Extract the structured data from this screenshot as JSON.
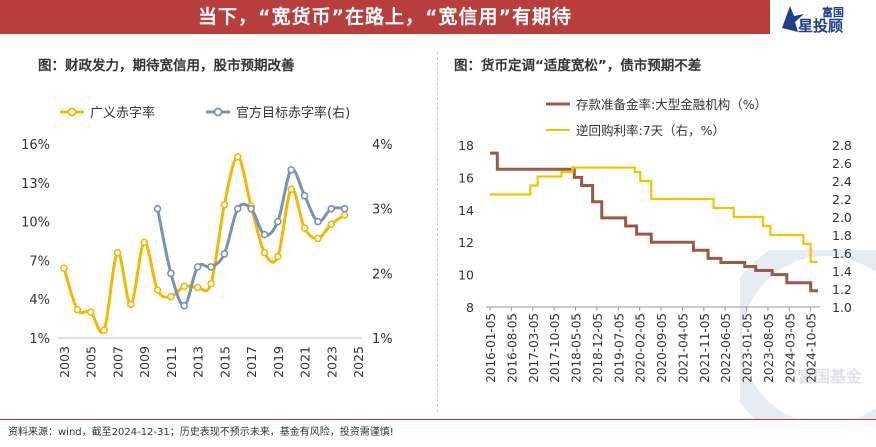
{
  "banner": {
    "title": "当下，“宽货币”在路上，“宽信用”有期待"
  },
  "logo": {
    "brand": "富国",
    "brand_sub": "星投顾",
    "watermark": "富国基金"
  },
  "left_panel": {
    "title": "图：财政发力，期待宽信用，股市预期改善"
  },
  "right_panel": {
    "title": "图：货币定调“适度宽松”，债市预期不差"
  },
  "footnote": "资料来源：wind，截至2024-12-31；历史表现不预示未来，基金有风险，投资需谨慎!",
  "colors": {
    "banner": "#b83d3d",
    "gold": "#f5b800",
    "steel": "#7b93b0",
    "brown": "#9a5a45",
    "yellow": "#f5c400"
  },
  "chart_data": [
    {
      "type": "line",
      "title": "图：财政发力，期待宽信用，股市预期改善",
      "legend_position": "top",
      "y_left_ticks": [
        "16%",
        "13%",
        "10%",
        "7%",
        "4%",
        "1%"
      ],
      "y_right_ticks": [
        "4%",
        "3%",
        "2%",
        "1%"
      ],
      "ylim_left": [
        1,
        16
      ],
      "ylim_right": [
        1,
        4
      ],
      "x_ticks": [
        "2003",
        "2005",
        "2007",
        "2009",
        "2011",
        "2013",
        "2015",
        "2017",
        "2019",
        "2021",
        "2023",
        "2025"
      ],
      "series": [
        {
          "name": "广义赤字率",
          "axis": "left",
          "color": "#f5b800",
          "x": [
            2003,
            2004,
            2005,
            2006,
            2007,
            2008,
            2009,
            2010,
            2011,
            2012,
            2013,
            2014,
            2015,
            2016,
            2017,
            2018,
            2019,
            2020,
            2021,
            2022,
            2023,
            2024
          ],
          "values": [
            6.4,
            3.2,
            3.0,
            1.6,
            7.6,
            3.6,
            8.4,
            4.7,
            4.2,
            5.0,
            4.9,
            5.2,
            11.3,
            15.0,
            11.2,
            7.6,
            7.3,
            12.5,
            9.5,
            8.7,
            9.8,
            10.5
          ]
        },
        {
          "name": "官方目标赤字率(右)",
          "axis": "right",
          "color": "#7b93b0",
          "x": [
            2010,
            2011,
            2012,
            2013,
            2014,
            2015,
            2016,
            2017,
            2018,
            2019,
            2020,
            2021,
            2022,
            2023,
            2024
          ],
          "values": [
            3.0,
            2.0,
            1.5,
            2.1,
            2.1,
            2.3,
            3.0,
            3.0,
            2.6,
            2.8,
            3.6,
            3.2,
            2.8,
            3.0,
            3.0
          ]
        }
      ]
    },
    {
      "type": "line",
      "title": "图：货币定调“适度宽松”，债市预期不差",
      "legend_position": "top",
      "y_left_ticks": [
        "18",
        "16",
        "14",
        "12",
        "10",
        "8"
      ],
      "y_right_ticks": [
        "2.8",
        "2.6",
        "2.4",
        "2.2",
        "2.0",
        "1.8",
        "1.6",
        "1.4",
        "1.2",
        "1.0"
      ],
      "ylim_left": [
        8,
        18
      ],
      "ylim_right": [
        1.0,
        2.8
      ],
      "x_ticks": [
        "2016-01-05",
        "2016-08-05",
        "2017-03-05",
        "2017-10-05",
        "2018-05-05",
        "2018-12-05",
        "2019-07-05",
        "2020-02-05",
        "2020-09-05",
        "2021-04-05",
        "2021-11-05",
        "2022-06-05",
        "2023-01-05",
        "2023-08-05",
        "2024-03-05",
        "2024-10-05"
      ],
      "series": [
        {
          "name": "存款准备金率:大型金融机构（%）",
          "axis": "left",
          "color": "#9a5a45",
          "x": [
            2016.0,
            2016.2,
            2018.3,
            2018.5,
            2018.8,
            2019.05,
            2019.7,
            2020.0,
            2020.4,
            2021.55,
            2021.95,
            2022.3,
            2022.95,
            2023.25,
            2023.7,
            2024.1,
            2024.75,
            2024.95
          ],
          "values": [
            17.5,
            16.5,
            16.0,
            15.5,
            14.5,
            13.5,
            13.0,
            12.5,
            12.0,
            11.5,
            11.0,
            10.75,
            10.5,
            10.25,
            10.0,
            9.5,
            9.0,
            9.0
          ]
        },
        {
          "name": "逆回购利率:7天（右，%）",
          "axis": "right",
          "color": "#f5c400",
          "x": [
            2016.0,
            2017.1,
            2017.3,
            2017.95,
            2018.25,
            2019.95,
            2020.1,
            2020.4,
            2022.1,
            2022.65,
            2023.45,
            2023.65,
            2024.55,
            2024.75,
            2024.95
          ],
          "values": [
            2.25,
            2.35,
            2.45,
            2.5,
            2.55,
            2.5,
            2.4,
            2.2,
            2.1,
            2.0,
            1.9,
            1.8,
            1.7,
            1.5,
            1.5
          ]
        }
      ]
    }
  ]
}
